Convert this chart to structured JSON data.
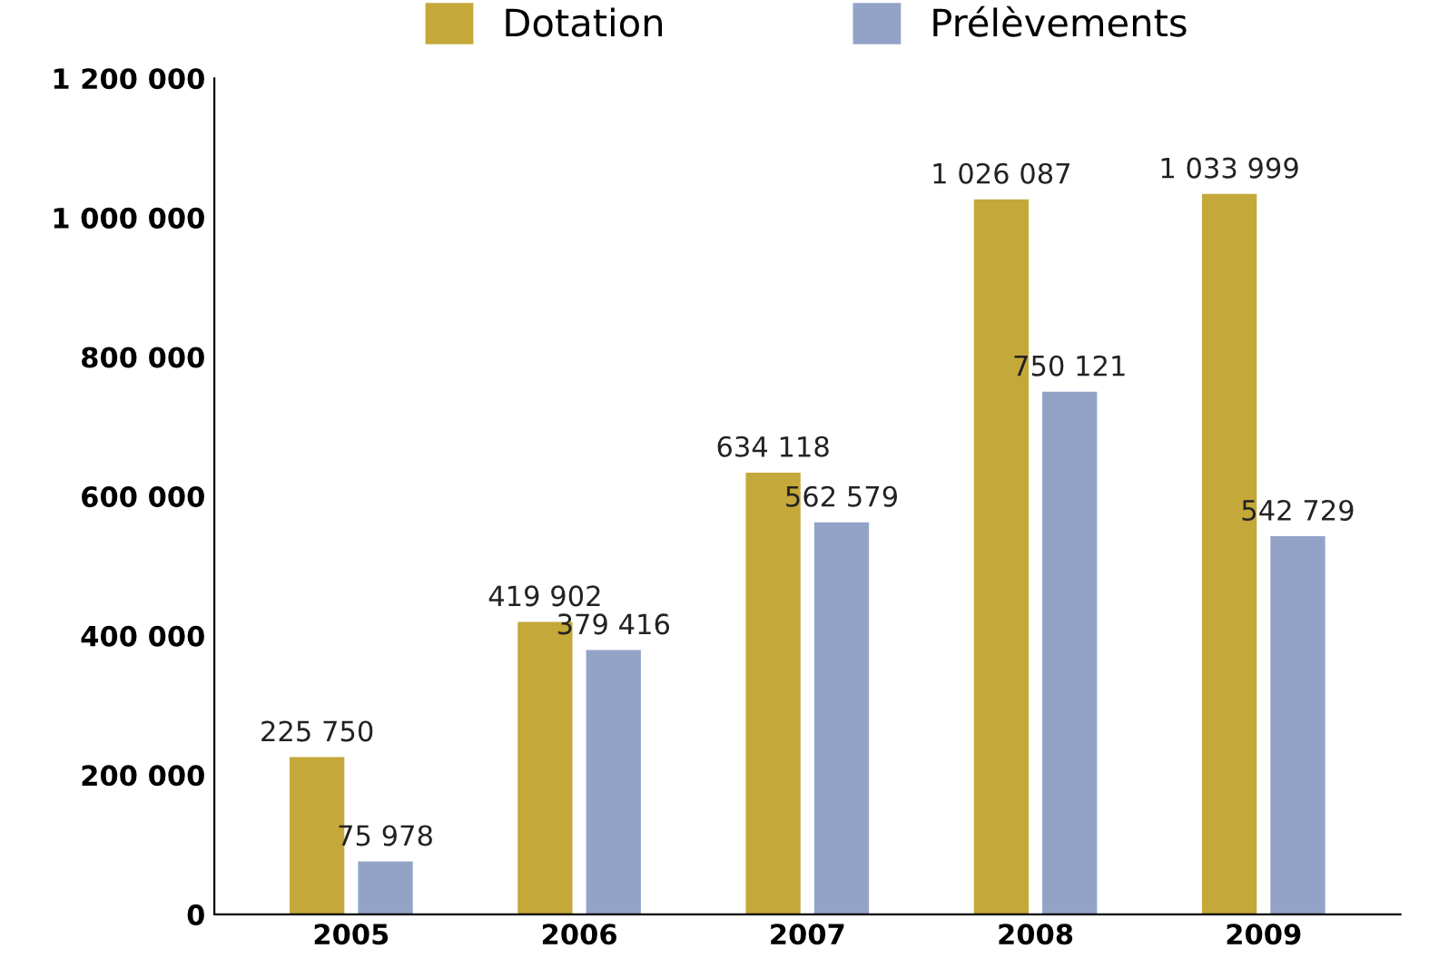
{
  "chart_data": {
    "type": "bar",
    "categories": [
      "2005",
      "2006",
      "2007",
      "2008",
      "2009"
    ],
    "series": [
      {
        "name": "Dotation",
        "color": "#c4a83a",
        "values": [
          225750,
          419902,
          634118,
          1026087,
          1033999
        ],
        "value_labels": [
          "225 750",
          "419 902",
          "634 118",
          "1 026 087",
          "1 033 999"
        ]
      },
      {
        "name": "Prélèvements",
        "color": "#93a3c8",
        "values": [
          75978,
          379416,
          562579,
          750121,
          542729
        ],
        "value_labels": [
          "75 978",
          "379 416",
          "562 579",
          "750 121",
          "542 729"
        ]
      }
    ],
    "ylim": [
      0,
      1200000
    ],
    "yticks": [
      {
        "value": 0,
        "label": "0"
      },
      {
        "value": 200000,
        "label": "200 000"
      },
      {
        "value": 400000,
        "label": "400 000"
      },
      {
        "value": 600000,
        "label": "600 000"
      },
      {
        "value": 800000,
        "label": "800 000"
      },
      {
        "value": 1000000,
        "label": "1 000 000"
      },
      {
        "value": 1200000,
        "label": "1 200 000"
      }
    ],
    "legend": "top",
    "grid": false
  }
}
